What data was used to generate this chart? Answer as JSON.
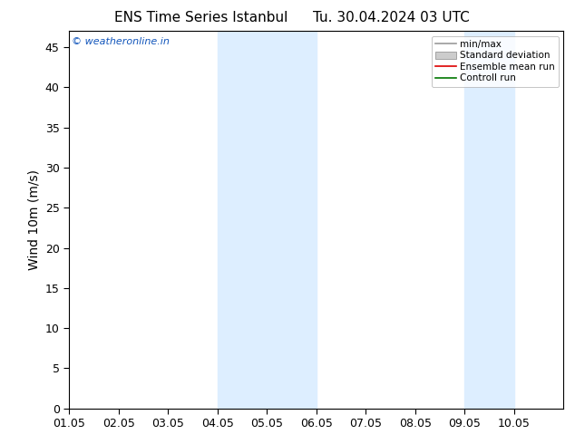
{
  "title_left": "ENS Time Series Istanbul",
  "title_right": "Tu. 30.04.2024 03 UTC",
  "ylabel": "Wind 10m (m/s)",
  "ylim": [
    0,
    47
  ],
  "yticks": [
    0,
    5,
    10,
    15,
    20,
    25,
    30,
    35,
    40,
    45
  ],
  "xlim": [
    0,
    10
  ],
  "xtick_labels": [
    "01.05",
    "02.05",
    "03.05",
    "04.05",
    "05.05",
    "06.05",
    "07.05",
    "08.05",
    "09.05",
    "10.05"
  ],
  "xtick_positions": [
    0,
    1,
    2,
    3,
    4,
    5,
    6,
    7,
    8,
    9
  ],
  "shaded_bands": [
    {
      "xmin": 3.0,
      "xmax": 5.0,
      "color": "#ddeeff"
    },
    {
      "xmin": 8.0,
      "xmax": 9.0,
      "color": "#ddeeff"
    }
  ],
  "watermark": "© weatheronline.in",
  "legend_items": [
    {
      "label": "min/max",
      "color": "#999999",
      "lw": 1.2,
      "style": "line"
    },
    {
      "label": "Standard deviation",
      "color": "#cccccc",
      "style": "patch"
    },
    {
      "label": "Ensemble mean run",
      "color": "#dd0000",
      "lw": 1.2,
      "style": "line"
    },
    {
      "label": "Controll run",
      "color": "#007700",
      "lw": 1.2,
      "style": "line"
    }
  ],
  "background_color": "#ffffff",
  "plot_bg_color": "#ffffff",
  "title_fontsize": 11,
  "axis_label_fontsize": 10,
  "tick_fontsize": 9,
  "watermark_fontsize": 8,
  "watermark_color": "#1155bb",
  "legend_fontsize": 7.5
}
